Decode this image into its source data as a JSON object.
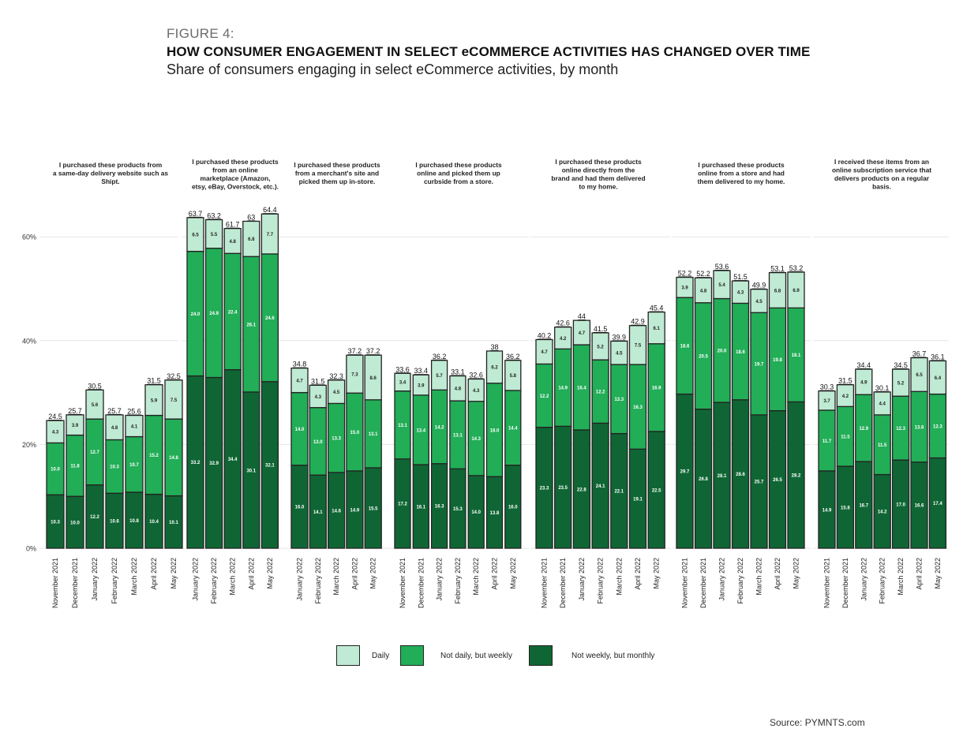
{
  "figure_label": "FIGURE 4:",
  "title": "HOW CONSUMER ENGAGEMENT IN SELECT eCOMMERCE ACTIVITIES HAS CHANGED OVER TIME",
  "subtitle": "Share of consumers engaging in select eCommerce activities, by month",
  "source": "Source: PYMNTS.com",
  "colors": {
    "daily": "#bfead3",
    "weekly": "#22ad57",
    "monthly": "#0f6634",
    "border": "#222222",
    "grid": "#e6e6e6"
  },
  "legend": [
    {
      "key": "daily",
      "label": "Daily"
    },
    {
      "key": "weekly",
      "label": "Not daily, but weekly"
    },
    {
      "key": "monthly",
      "label": "Not weekly, but monthly"
    }
  ],
  "chart_data": {
    "type": "bar",
    "stacked": true,
    "title": "HOW CONSUMER ENGAGEMENT IN SELECT eCOMMERCE ACTIVITIES HAS CHANGED OVER TIME",
    "subtitle": "Share of consumers engaging in select eCommerce activities, by month",
    "ylim": [
      0,
      65
    ],
    "yticks": [
      0,
      20,
      40,
      60
    ],
    "ytick_labels": [
      "0%",
      "20%",
      "40%",
      "60%"
    ],
    "grid": true,
    "legend_position": "bottom",
    "series_names": [
      "Not weekly, but monthly",
      "Not daily, but weekly",
      "Daily"
    ],
    "panels": [
      {
        "title": "I purchased these products from a same-day delivery website such as Shipt.",
        "categories": [
          "November 2021",
          "December 2021",
          "January 2022",
          "February 2022",
          "March 2022",
          "April 2022",
          "May 2022"
        ],
        "monthly": [
          10.3,
          10.0,
          12.2,
          10.6,
          10.8,
          10.4,
          10.1
        ],
        "weekly": [
          10.0,
          11.8,
          12.7,
          10.3,
          10.7,
          15.2,
          14.8
        ],
        "daily": [
          4.3,
          3.9,
          5.6,
          4.8,
          4.1,
          5.9,
          7.5
        ],
        "totals": [
          "24.5",
          "25.7",
          "30.5",
          "25.7",
          "25.6",
          "31.5",
          "32.5"
        ]
      },
      {
        "title": "I purchased these products from an online marketplace (Amazon, etsy, eBay, Overstock, etc.).",
        "categories": [
          "January 2022",
          "February 2022",
          "March 2022",
          "April 2022",
          "May 2022"
        ],
        "monthly": [
          33.2,
          32.9,
          34.4,
          30.1,
          32.1
        ],
        "weekly": [
          24.0,
          24.9,
          22.4,
          26.1,
          24.6
        ],
        "daily": [
          6.5,
          5.5,
          4.8,
          6.8,
          7.7
        ],
        "totals": [
          "63.7",
          "63.2",
          "61.7",
          "63",
          "64.4"
        ]
      },
      {
        "title": "I purchased these products from a merchant's site and picked them up in-store.",
        "categories": [
          "January 2022",
          "February 2022",
          "March 2022",
          "April 2022",
          "May 2022"
        ],
        "monthly": [
          16.0,
          14.1,
          14.6,
          14.9,
          15.5
        ],
        "weekly": [
          14.0,
          13.0,
          13.3,
          15.0,
          13.1
        ],
        "daily": [
          4.7,
          4.3,
          4.5,
          7.3,
          8.6
        ],
        "totals": [
          "34.8",
          "31.5",
          "32.3",
          "37.2",
          "37.2"
        ]
      },
      {
        "title": "I purchased these products online and picked them up curbside from a store.",
        "categories": [
          "November 2021",
          "December 2021",
          "January 2022",
          "February 2022",
          "March 2022",
          "April 2022",
          "May 2022"
        ],
        "monthly": [
          17.2,
          16.1,
          16.3,
          15.3,
          14.0,
          13.8,
          16.0
        ],
        "weekly": [
          13.1,
          13.4,
          14.2,
          13.1,
          14.3,
          18.0,
          14.4
        ],
        "daily": [
          3.4,
          3.9,
          5.7,
          4.8,
          4.3,
          6.2,
          5.8
        ],
        "totals": [
          "33.6",
          "33.4",
          "36.2",
          "33.1",
          "32.6",
          "38",
          "36.2"
        ]
      },
      {
        "title": "I purchased these products online directly from the brand and had them delivered to my home.",
        "categories": [
          "November 2021",
          "December 2021",
          "January 2022",
          "February 2022",
          "March 2022",
          "April 2022",
          "May 2022"
        ],
        "monthly": [
          23.3,
          23.5,
          22.8,
          24.1,
          22.1,
          19.1,
          22.5
        ],
        "weekly": [
          12.2,
          14.9,
          16.4,
          12.2,
          13.3,
          16.3,
          16.9
        ],
        "daily": [
          4.7,
          4.2,
          4.7,
          5.2,
          4.5,
          7.5,
          6.1
        ],
        "totals": [
          "40.2",
          "42.6",
          "44",
          "41.5",
          "39.9",
          "42.9",
          "45.4"
        ]
      },
      {
        "title": "I purchased these products online from a store and had them delivered to my home.",
        "categories": [
          "November 2021",
          "December 2021",
          "January 2022",
          "February 2022",
          "March 2022",
          "April 2022",
          "May 2022"
        ],
        "monthly": [
          29.7,
          26.8,
          28.1,
          28.6,
          25.7,
          26.5,
          28.2
        ],
        "weekly": [
          18.6,
          20.5,
          20.0,
          18.6,
          19.7,
          19.8,
          18.1
        ],
        "daily": [
          3.9,
          4.8,
          5.4,
          4.3,
          4.5,
          6.8,
          6.9
        ],
        "totals": [
          "52.2",
          "52.2",
          "53.6",
          "51.5",
          "49.9",
          "53.1",
          "53.2"
        ]
      },
      {
        "title": "I received these items from an online subscription service that delivers products on a regular basis.",
        "categories": [
          "November 2021",
          "December 2021",
          "January 2022",
          "February 2022",
          "March 2022",
          "April 2022",
          "May 2022"
        ],
        "monthly": [
          14.9,
          15.8,
          16.7,
          14.2,
          17.0,
          16.6,
          17.4
        ],
        "weekly": [
          11.7,
          11.5,
          12.9,
          11.5,
          12.3,
          13.6,
          12.3
        ],
        "daily": [
          3.7,
          4.2,
          4.9,
          4.4,
          5.2,
          6.5,
          6.4
        ],
        "totals": [
          "30.3",
          "31.5",
          "34.4",
          "30.1",
          "34.5",
          "36.7",
          "36.1"
        ]
      }
    ]
  }
}
